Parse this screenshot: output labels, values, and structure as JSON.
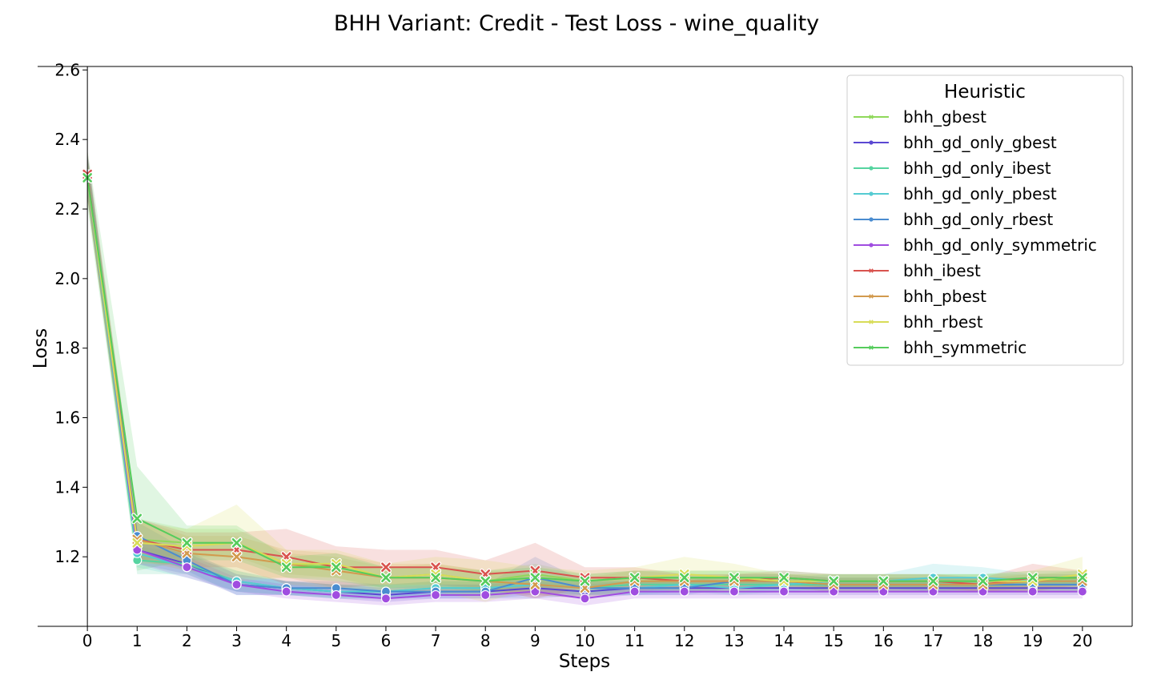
{
  "chart_data": {
    "type": "line",
    "title": "BHH Variant: Credit - Test Loss - wine_quality",
    "xlabel": "Steps",
    "ylabel": "Loss",
    "x": [
      0,
      1,
      2,
      3,
      4,
      5,
      6,
      7,
      8,
      9,
      10,
      11,
      12,
      13,
      14,
      15,
      16,
      17,
      18,
      19,
      20
    ],
    "xlim": [
      -1,
      21
    ],
    "ylim": [
      1.0,
      2.61
    ],
    "yticks": [
      1.2,
      1.4,
      1.6,
      1.8,
      2.0,
      2.2,
      2.4,
      2.6
    ],
    "ytick_labels": [
      "1.2",
      "1.4",
      "1.6",
      "1.8",
      "2.0",
      "2.2",
      "2.4",
      "2.6"
    ],
    "xtick_labels": [
      "0",
      "1",
      "2",
      "3",
      "4",
      "5",
      "6",
      "7",
      "8",
      "9",
      "10",
      "11",
      "12",
      "13",
      "14",
      "15",
      "16",
      "17",
      "18",
      "19",
      "20"
    ],
    "legend": {
      "title": "Heuristic",
      "placement": "top-right"
    },
    "grid": false,
    "series": [
      {
        "name": "bhh_gbest",
        "color": "#8fd85a",
        "marker": "x",
        "values": [
          2.29,
          1.25,
          1.24,
          1.24,
          1.18,
          1.17,
          1.14,
          1.15,
          1.13,
          1.15,
          1.13,
          1.14,
          1.14,
          1.14,
          1.13,
          1.13,
          1.13,
          1.13,
          1.13,
          1.13,
          1.14
        ],
        "band": [
          0.06,
          0.06,
          0.04,
          0.04,
          0.03,
          0.03,
          0.03,
          0.03,
          0.03,
          0.03,
          0.02,
          0.02,
          0.02,
          0.02,
          0.02,
          0.02,
          0.02,
          0.02,
          0.02,
          0.02,
          0.02
        ]
      },
      {
        "name": "bhh_gd_only_gbest",
        "color": "#5b48d2",
        "marker": "o",
        "values": [
          2.3,
          1.22,
          1.18,
          1.12,
          1.11,
          1.1,
          1.09,
          1.1,
          1.1,
          1.11,
          1.1,
          1.11,
          1.11,
          1.11,
          1.11,
          1.11,
          1.11,
          1.11,
          1.11,
          1.11,
          1.11
        ],
        "band": [
          0.06,
          0.04,
          0.03,
          0.03,
          0.02,
          0.02,
          0.02,
          0.02,
          0.02,
          0.02,
          0.02,
          0.02,
          0.02,
          0.02,
          0.02,
          0.02,
          0.02,
          0.02,
          0.02,
          0.02,
          0.02
        ]
      },
      {
        "name": "bhh_gd_only_ibest",
        "color": "#56d4a0",
        "marker": "o",
        "values": [
          2.3,
          1.19,
          1.18,
          1.13,
          1.11,
          1.1,
          1.1,
          1.11,
          1.11,
          1.12,
          1.11,
          1.12,
          1.12,
          1.12,
          1.12,
          1.12,
          1.12,
          1.12,
          1.12,
          1.12,
          1.12
        ],
        "band": [
          0.06,
          0.04,
          0.03,
          0.03,
          0.02,
          0.02,
          0.02,
          0.02,
          0.02,
          0.02,
          0.02,
          0.02,
          0.02,
          0.02,
          0.02,
          0.02,
          0.02,
          0.02,
          0.02,
          0.02,
          0.02
        ]
      },
      {
        "name": "bhh_gd_only_pbest",
        "color": "#55cbd2",
        "marker": "o",
        "values": [
          2.29,
          1.21,
          1.17,
          1.13,
          1.11,
          1.1,
          1.1,
          1.11,
          1.11,
          1.12,
          1.11,
          1.11,
          1.12,
          1.11,
          1.12,
          1.13,
          1.13,
          1.14,
          1.14,
          1.13,
          1.13
        ],
        "band": [
          0.06,
          0.04,
          0.03,
          0.03,
          0.02,
          0.02,
          0.02,
          0.02,
          0.02,
          0.02,
          0.02,
          0.02,
          0.02,
          0.02,
          0.02,
          0.02,
          0.02,
          0.04,
          0.03,
          0.02,
          0.02
        ]
      },
      {
        "name": "bhh_gd_only_rbest",
        "color": "#4a8cd0",
        "marker": "o",
        "values": [
          2.3,
          1.26,
          1.19,
          1.12,
          1.11,
          1.11,
          1.1,
          1.1,
          1.1,
          1.14,
          1.11,
          1.11,
          1.11,
          1.13,
          1.13,
          1.12,
          1.12,
          1.12,
          1.12,
          1.12,
          1.12
        ],
        "band": [
          0.06,
          0.04,
          0.03,
          0.03,
          0.02,
          0.02,
          0.02,
          0.02,
          0.02,
          0.06,
          0.02,
          0.02,
          0.02,
          0.02,
          0.02,
          0.02,
          0.02,
          0.02,
          0.02,
          0.02,
          0.02
        ]
      },
      {
        "name": "bhh_gd_only_symmetric",
        "color": "#a04de0",
        "marker": "o",
        "values": [
          2.3,
          1.22,
          1.17,
          1.12,
          1.1,
          1.09,
          1.08,
          1.09,
          1.09,
          1.1,
          1.08,
          1.1,
          1.1,
          1.1,
          1.1,
          1.1,
          1.1,
          1.1,
          1.1,
          1.1,
          1.1
        ],
        "band": [
          0.06,
          0.04,
          0.03,
          0.02,
          0.02,
          0.02,
          0.02,
          0.02,
          0.02,
          0.02,
          0.02,
          0.02,
          0.02,
          0.02,
          0.02,
          0.02,
          0.02,
          0.02,
          0.02,
          0.02,
          0.02
        ]
      },
      {
        "name": "bhh_ibest",
        "color": "#d9534f",
        "marker": "x",
        "values": [
          2.3,
          1.25,
          1.22,
          1.22,
          1.2,
          1.17,
          1.17,
          1.17,
          1.15,
          1.16,
          1.14,
          1.14,
          1.13,
          1.13,
          1.14,
          1.13,
          1.13,
          1.13,
          1.12,
          1.14,
          1.14
        ],
        "band": [
          0.07,
          0.06,
          0.05,
          0.05,
          0.08,
          0.06,
          0.05,
          0.05,
          0.04,
          0.08,
          0.03,
          0.03,
          0.02,
          0.02,
          0.02,
          0.02,
          0.02,
          0.02,
          0.02,
          0.04,
          0.02
        ]
      },
      {
        "name": "bhh_pbest",
        "color": "#d29a4e",
        "marker": "x",
        "values": [
          2.29,
          1.25,
          1.21,
          1.2,
          1.18,
          1.16,
          1.14,
          1.14,
          1.13,
          1.12,
          1.11,
          1.13,
          1.13,
          1.13,
          1.13,
          1.12,
          1.12,
          1.12,
          1.12,
          1.13,
          1.13
        ],
        "band": [
          0.06,
          0.06,
          0.05,
          0.06,
          0.04,
          0.05,
          0.04,
          0.04,
          0.03,
          0.03,
          0.03,
          0.03,
          0.02,
          0.02,
          0.02,
          0.02,
          0.02,
          0.02,
          0.02,
          0.02,
          0.02
        ]
      },
      {
        "name": "bhh_rbest",
        "color": "#d8dc58",
        "marker": "x",
        "values": [
          2.29,
          1.24,
          1.23,
          1.24,
          1.18,
          1.18,
          1.14,
          1.15,
          1.13,
          1.14,
          1.13,
          1.14,
          1.15,
          1.14,
          1.13,
          1.13,
          1.13,
          1.13,
          1.13,
          1.13,
          1.15
        ],
        "band": [
          0.06,
          0.06,
          0.05,
          0.11,
          0.04,
          0.04,
          0.04,
          0.05,
          0.06,
          0.03,
          0.03,
          0.03,
          0.05,
          0.04,
          0.02,
          0.02,
          0.02,
          0.02,
          0.02,
          0.03,
          0.05
        ]
      },
      {
        "name": "bhh_symmetric",
        "color": "#55cc5c",
        "marker": "x",
        "values": [
          2.29,
          1.31,
          1.24,
          1.24,
          1.17,
          1.17,
          1.14,
          1.14,
          1.13,
          1.14,
          1.13,
          1.14,
          1.14,
          1.14,
          1.14,
          1.13,
          1.13,
          1.13,
          1.13,
          1.14,
          1.14
        ],
        "band": [
          0.08,
          0.15,
          0.05,
          0.05,
          0.03,
          0.04,
          0.03,
          0.03,
          0.03,
          0.03,
          0.02,
          0.02,
          0.02,
          0.02,
          0.02,
          0.02,
          0.02,
          0.02,
          0.02,
          0.02,
          0.02
        ]
      }
    ]
  }
}
